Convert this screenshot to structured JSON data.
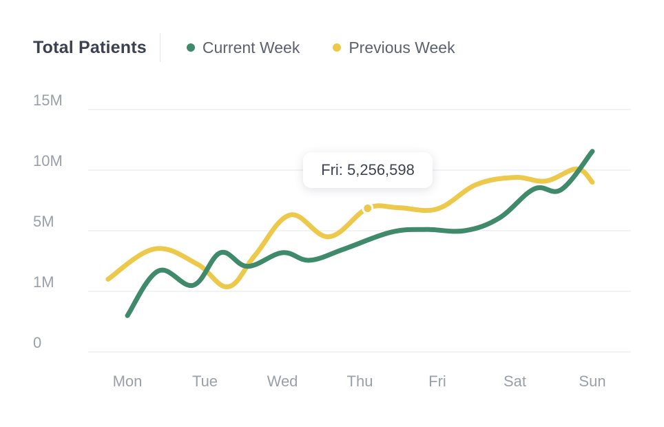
{
  "header": {
    "title": "Total Patients"
  },
  "legend": [
    {
      "label": "Current Week",
      "color": "#3f8a6b"
    },
    {
      "label": "Previous Week",
      "color": "#ecc94b"
    }
  ],
  "tooltip": {
    "text": "Fri: 5,256,598"
  },
  "chart_data": {
    "type": "line",
    "title": "Total Patients",
    "xlabel": "",
    "ylabel": "",
    "categories": [
      "Mon",
      "Tue",
      "Wed",
      "Thu",
      "Fri",
      "Sat",
      "Sun"
    ],
    "y_ticks": [
      {
        "label": "0",
        "value": 0
      },
      {
        "label": "1M",
        "value": 1000000
      },
      {
        "label": "5M",
        "value": 5000000
      },
      {
        "label": "10M",
        "value": 10000000
      },
      {
        "label": "15M",
        "value": 15000000
      }
    ],
    "ylim": [
      0,
      15000000
    ],
    "grid": true,
    "legend_position": "top",
    "series": [
      {
        "name": "Current Week",
        "color": "#3f8a6b",
        "x": [
          0.0,
          0.4,
          0.85,
          1.2,
          1.55,
          2.0,
          2.35,
          2.8,
          3.4,
          3.85,
          4.35,
          4.8,
          5.25,
          5.6,
          6.0
        ],
        "values": [
          600000,
          2350000,
          1400000,
          3550000,
          2650000,
          3550000,
          3050000,
          3800000,
          4900000,
          5100000,
          5000000,
          6050000,
          8450000,
          8400000,
          11550000
        ]
      },
      {
        "name": "Previous Week",
        "color": "#ecc94b",
        "x": [
          -0.25,
          0.35,
          0.9,
          1.3,
          1.65,
          2.1,
          2.6,
          3.1,
          3.5,
          4.0,
          4.5,
          5.0,
          5.4,
          5.8,
          6.0
        ],
        "values": [
          1800000,
          3800000,
          2800000,
          1300000,
          3400000,
          6300000,
          4600000,
          6850000,
          6900000,
          6800000,
          8800000,
          9400000,
          9100000,
          10100000,
          9000000
        ]
      }
    ],
    "highlight": {
      "series": "Previous Week",
      "x": 3.1,
      "value": 6850000
    }
  }
}
